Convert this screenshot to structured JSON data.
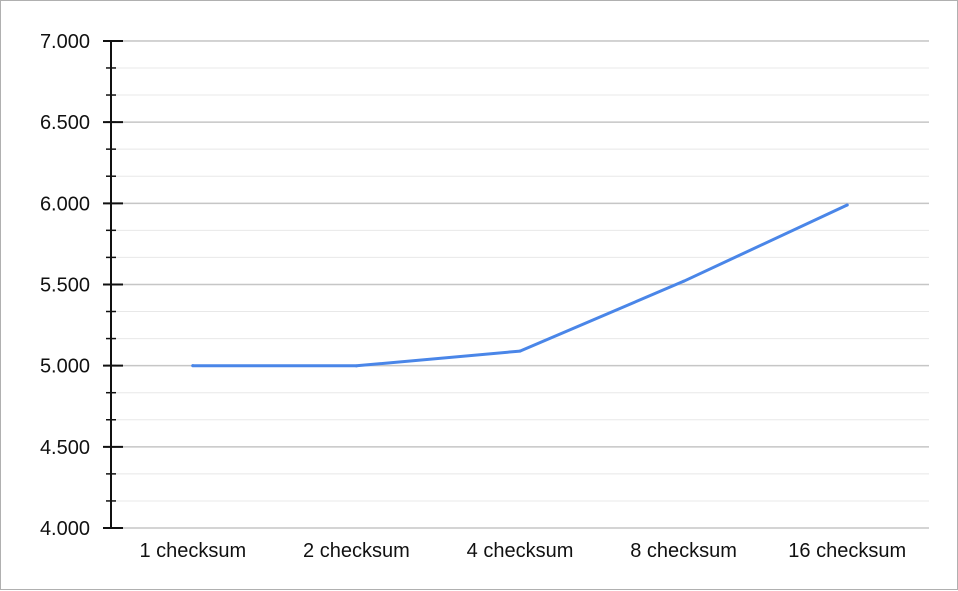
{
  "chart_data": {
    "type": "line",
    "categories": [
      "1 checksum",
      "2 checksum",
      "4 checksum",
      "8 checksum",
      "16 checksum"
    ],
    "series": [
      {
        "values": [
          5.0,
          4.999,
          5.09,
          5.52,
          5.99
        ]
      }
    ],
    "ylim": [
      4.0,
      7.0
    ],
    "y_ticks": [
      "4.000",
      "4.500",
      "5.000",
      "5.500",
      "6.000",
      "6.500",
      "7.000"
    ],
    "y_tick_values": [
      4.0,
      4.5,
      5.0,
      5.5,
      6.0,
      6.5,
      7.0
    ],
    "y_minor_step": 0.1667,
    "title": "",
    "xlabel": "",
    "ylabel": "",
    "grid": true,
    "legend": "none",
    "colors": {
      "line": "#4a86e8",
      "major_grid": "#c6c6c6",
      "minor_grid": "#e8e8e8",
      "axis": "#111111"
    }
  }
}
